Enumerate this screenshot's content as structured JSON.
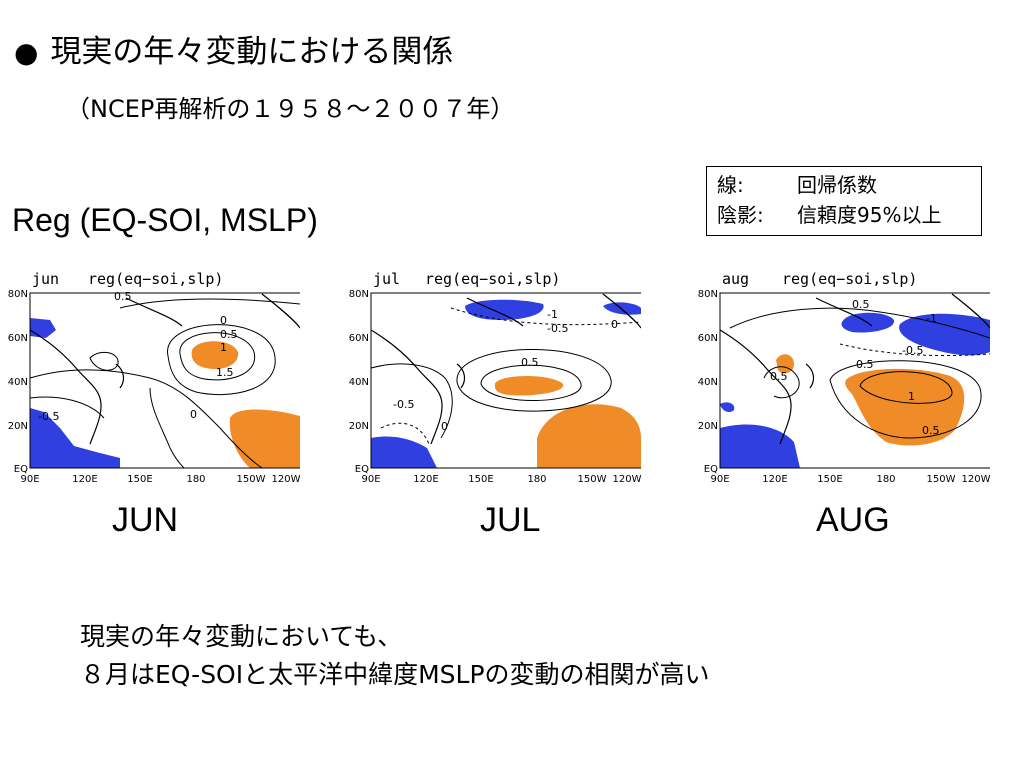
{
  "slide": {
    "bullet": "●",
    "title": "現実の年々変動における関係",
    "subtitle": "（NCEP再解析の１９５８～２００７年）",
    "reg_label": "Reg (EQ-SOI, MSLP)"
  },
  "legend": {
    "line_key": "線:",
    "line_value": "回帰係数",
    "shade_key": "陰影:",
    "shade_value": "信頼度95%以上"
  },
  "maps": {
    "lat_labels": [
      "80N",
      "60N",
      "40N",
      "20N",
      "EQ"
    ],
    "lon_labels": [
      "90E",
      "120E",
      "150E",
      "180",
      "150W",
      "120W"
    ],
    "colors": {
      "positive_shade": "#f08c28",
      "negative_shade": "#2f3fe0"
    },
    "panels": [
      {
        "month_tag": "jun",
        "field": "reg(eq−soi,slp)",
        "label": "JUN",
        "contour_labels": [
          "0.5",
          "0",
          "0.5",
          "1",
          "1.5",
          "-0.5",
          "0"
        ]
      },
      {
        "month_tag": "jul",
        "field": "reg(eq−soi,slp)",
        "label": "JUL",
        "contour_labels": [
          "-1",
          "-0.5",
          "0",
          "0.5",
          "-0.5",
          "0"
        ]
      },
      {
        "month_tag": "aug",
        "field": "reg(eq−soi,slp)",
        "label": "AUG",
        "contour_labels": [
          "0.5",
          "-1",
          "-0.5",
          "0.5",
          "1",
          "0.5",
          "0.5"
        ]
      }
    ]
  },
  "conclusion": {
    "line1": "現実の年々変動においても、",
    "line2": "８月はEQ-SOIと太平洋中緯度MSLPの変動の相関が高い"
  }
}
